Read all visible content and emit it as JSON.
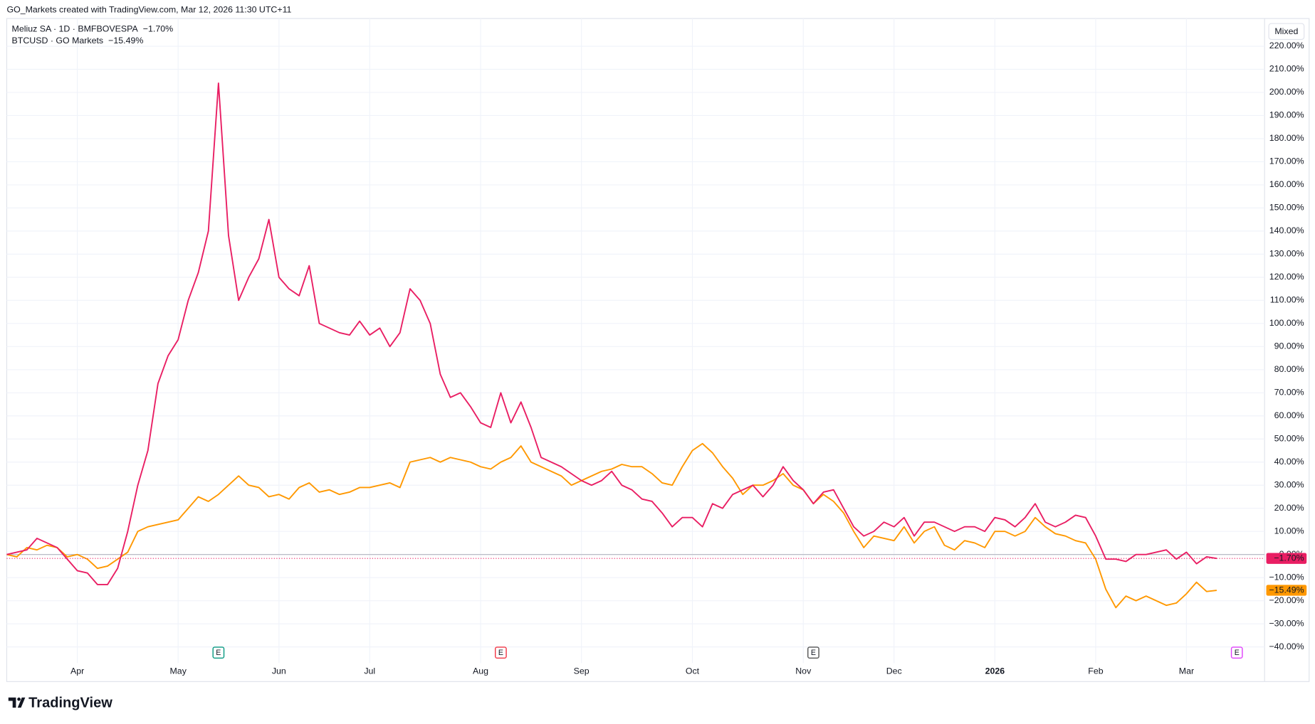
{
  "header": "GO_Markets created with TradingView.com, Mar 12, 2026 11:30 UTC+11",
  "scale_mode": "Mixed",
  "brand": "TradingView",
  "events": [
    {
      "label": "E",
      "index": 21,
      "color": "#089981"
    },
    {
      "label": "E",
      "index": 49,
      "color": "#f23645"
    },
    {
      "label": "E",
      "index": 80,
      "color": "#555555"
    },
    {
      "label": "E",
      "index": 122,
      "color": "#e040fb"
    }
  ],
  "chart_data": {
    "type": "line",
    "categories": [
      null,
      null,
      null,
      null,
      null,
      null,
      null,
      "Apr",
      null,
      null,
      null,
      null,
      null,
      null,
      null,
      null,
      null,
      "May",
      null,
      null,
      null,
      null,
      null,
      null,
      null,
      null,
      null,
      "Jun",
      null,
      null,
      null,
      null,
      null,
      null,
      null,
      null,
      "Jul",
      null,
      null,
      null,
      null,
      null,
      null,
      null,
      null,
      null,
      null,
      "Aug",
      null,
      null,
      null,
      null,
      null,
      null,
      null,
      null,
      null,
      "Sep",
      null,
      null,
      null,
      null,
      null,
      null,
      null,
      null,
      null,
      null,
      "Oct",
      null,
      null,
      null,
      null,
      null,
      null,
      null,
      null,
      null,
      null,
      "Nov",
      null,
      null,
      null,
      null,
      null,
      null,
      null,
      null,
      "Dec",
      null,
      null,
      null,
      null,
      null,
      null,
      null,
      null,
      null,
      "2026",
      null,
      null,
      null,
      null,
      null,
      null,
      null,
      null,
      null,
      "Feb",
      null,
      null,
      null,
      null,
      null,
      null,
      null,
      null,
      "Mar",
      null,
      null,
      null
    ],
    "series": [
      {
        "name": "Meliuz SA · 1D · BMFBOVESPA",
        "color": "#e91e63",
        "last_label": "−1.70%",
        "values": [
          0,
          1,
          2,
          7,
          5,
          3,
          -2,
          -7,
          -8,
          -13,
          -13,
          -6,
          10,
          30,
          45,
          74,
          86,
          93,
          110,
          122,
          140,
          204,
          138,
          110,
          120,
          128,
          145,
          120,
          115,
          112,
          125,
          100,
          98,
          96,
          95,
          101,
          95,
          98,
          90,
          96,
          115,
          110,
          100,
          78,
          68,
          70,
          64,
          57,
          55,
          70,
          57,
          66,
          55,
          42,
          40,
          38,
          35,
          32,
          30,
          32,
          36,
          30,
          28,
          24,
          23,
          18,
          12,
          16,
          16,
          12,
          22,
          20,
          26,
          28,
          30,
          25,
          30,
          38,
          32,
          28,
          22,
          27,
          28,
          20,
          12,
          8,
          10,
          14,
          12,
          16,
          8,
          14,
          14,
          12,
          10,
          12,
          12,
          10,
          16,
          15,
          12,
          16,
          22,
          14,
          12,
          14,
          17,
          16,
          8,
          -2,
          -2,
          -3,
          0,
          0,
          1,
          2,
          -2,
          1,
          -4,
          -1,
          -1.7
        ]
      },
      {
        "name": "BTCUSD · GO Markets",
        "color": "#ff9800",
        "last_label": "−15.49%",
        "values": [
          0,
          -1,
          3,
          2,
          4,
          3,
          -1,
          0,
          -2,
          -6,
          -5,
          -2,
          1,
          10,
          12,
          13,
          14,
          15,
          20,
          25,
          23,
          26,
          30,
          34,
          30,
          29,
          25,
          26,
          24,
          29,
          31,
          27,
          28,
          26,
          27,
          29,
          29,
          30,
          31,
          29,
          40,
          41,
          42,
          40,
          42,
          41,
          40,
          38,
          37,
          40,
          42,
          47,
          40,
          38,
          36,
          34,
          30,
          32,
          34,
          36,
          37,
          39,
          38,
          38,
          35,
          31,
          30,
          38,
          45,
          48,
          44,
          38,
          33,
          26,
          30,
          30,
          32,
          35,
          30,
          28,
          22,
          26,
          23,
          18,
          10,
          3,
          8,
          7,
          6,
          12,
          5,
          10,
          12,
          4,
          2,
          6,
          5,
          3,
          10,
          10,
          8,
          10,
          16,
          12,
          9,
          8,
          6,
          5,
          -2,
          -15,
          -23,
          -18,
          -20,
          -18,
          -20,
          -22,
          -21,
          -17,
          -12,
          -16,
          -15.49
        ]
      }
    ],
    "ylim": [
      -55,
      232
    ],
    "yticks": [
      {
        "value": -40,
        "label": "−40.00%"
      },
      {
        "value": -30,
        "label": "−30.00%"
      },
      {
        "value": -20,
        "label": "−20.00%"
      },
      {
        "value": -10,
        "label": "−10.00%"
      },
      {
        "value": 0,
        "label": "0.00%"
      },
      {
        "value": 10,
        "label": "10.00%"
      },
      {
        "value": 20,
        "label": "20.00%"
      },
      {
        "value": 30,
        "label": "30.00%"
      },
      {
        "value": 40,
        "label": "40.00%"
      },
      {
        "value": 50,
        "label": "50.00%"
      },
      {
        "value": 60,
        "label": "60.00%"
      },
      {
        "value": 70,
        "label": "70.00%"
      },
      {
        "value": 80,
        "label": "80.00%"
      },
      {
        "value": 90,
        "label": "90.00%"
      },
      {
        "value": 100,
        "label": "100.00%"
      },
      {
        "value": 110,
        "label": "110.00%"
      },
      {
        "value": 120,
        "label": "120.00%"
      },
      {
        "value": 130,
        "label": "130.00%"
      },
      {
        "value": 140,
        "label": "140.00%"
      },
      {
        "value": 150,
        "label": "150.00%"
      },
      {
        "value": 160,
        "label": "160.00%"
      },
      {
        "value": 170,
        "label": "170.00%"
      },
      {
        "value": 180,
        "label": "180.00%"
      },
      {
        "value": 190,
        "label": "190.00%"
      },
      {
        "value": 200,
        "label": "200.00%"
      },
      {
        "value": 210,
        "label": "210.00%"
      },
      {
        "value": 220,
        "label": "220.00%"
      }
    ],
    "grid": true
  }
}
